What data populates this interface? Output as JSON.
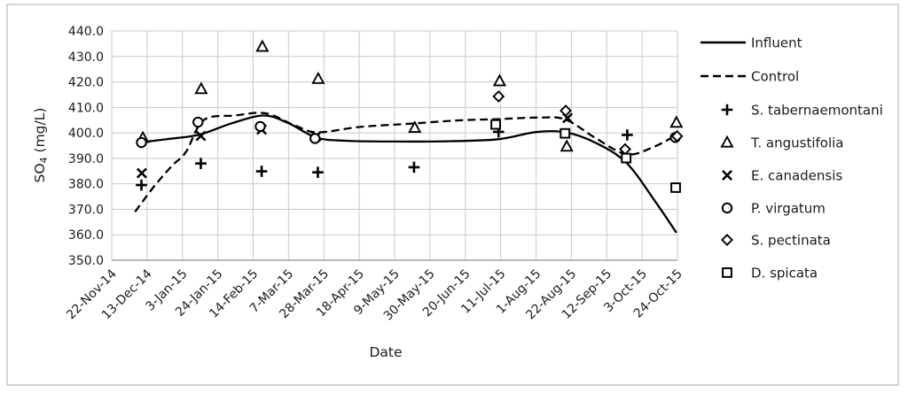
{
  "chart_data": {
    "type": "line+scatter",
    "title": "",
    "xlabel": "Date",
    "ylabel": {
      "base": "SO",
      "sub": "4",
      "unit": " (mg/L)"
    },
    "y_axis": {
      "min": 350,
      "max": 440,
      "step": 10,
      "decimals": 1
    },
    "x_tick_labels": [
      "22-Nov-14",
      "13-Dec-14",
      "3-Jan-15",
      "24-Jan-15",
      "14-Feb-15",
      "7-Mar-15",
      "28-Mar-15",
      "18-Apr-15",
      "9-May-15",
      "30-May-15",
      "20-Jun-15",
      "11-Jul-15",
      "1-Aug-15",
      "22-Aug-15",
      "12-Sep-15",
      "3-Oct-15",
      "24-Oct-15"
    ],
    "grid": true,
    "legend_position": "right",
    "lines": [
      {
        "name": "Influent",
        "style": "solid",
        "points": [
          [
            0.83,
            396.3
          ],
          [
            1.6,
            397.6
          ],
          [
            2.48,
            399.3
          ],
          [
            3.4,
            403.8
          ],
          [
            4.3,
            406.8
          ],
          [
            5.0,
            403.8
          ],
          [
            5.78,
            398.2
          ],
          [
            6.6,
            396.9
          ],
          [
            8.0,
            396.6
          ],
          [
            9.5,
            396.7
          ],
          [
            10.93,
            397.5
          ],
          [
            12.0,
            400.3
          ],
          [
            12.84,
            400.2
          ],
          [
            13.7,
            396.0
          ],
          [
            14.56,
            388.2
          ],
          [
            15.35,
            373.5
          ],
          [
            15.97,
            360.8
          ]
        ]
      },
      {
        "name": "Control",
        "style": "dashed",
        "points": [
          [
            0.66,
            369.0
          ],
          [
            1.2,
            379.0
          ],
          [
            1.7,
            387.0
          ],
          [
            2.1,
            392.5
          ],
          [
            2.6,
            405.0
          ],
          [
            3.5,
            406.8
          ],
          [
            4.35,
            407.7
          ],
          [
            5.2,
            402.8
          ],
          [
            5.82,
            400.2
          ],
          [
            7.0,
            402.3
          ],
          [
            8.55,
            403.7
          ],
          [
            9.8,
            404.9
          ],
          [
            10.93,
            405.4
          ],
          [
            12.1,
            406.0
          ],
          [
            12.84,
            405.2
          ],
          [
            13.7,
            397.8
          ],
          [
            14.56,
            391.6
          ],
          [
            15.3,
            394.3
          ],
          [
            15.97,
            399.2
          ]
        ]
      }
    ],
    "scatter": [
      {
        "name": "S. tabernaemontani",
        "marker": "plus",
        "points": [
          [
            0.84,
            379.5
          ],
          [
            2.52,
            388.0
          ],
          [
            4.24,
            384.9
          ],
          [
            5.83,
            384.5
          ],
          [
            8.55,
            386.5
          ],
          [
            10.94,
            400.4
          ],
          [
            14.58,
            399.2
          ]
        ]
      },
      {
        "name": "T. angustifolia",
        "marker": "triangle",
        "points": [
          [
            0.88,
            398.0
          ],
          [
            2.53,
            417.2
          ],
          [
            4.26,
            433.8
          ],
          [
            5.84,
            421.2
          ],
          [
            8.57,
            402.0
          ],
          [
            10.97,
            420.3
          ],
          [
            12.87,
            394.6
          ],
          [
            15.97,
            404.0
          ]
        ]
      },
      {
        "name": "E. canadensis",
        "marker": "x",
        "points": [
          [
            0.85,
            384.2
          ],
          [
            2.52,
            398.8
          ],
          [
            4.24,
            401.3
          ],
          [
            5.78,
            398.6
          ],
          [
            12.89,
            405.8
          ]
        ]
      },
      {
        "name": "P. virgatum",
        "marker": "circle",
        "points": [
          [
            0.84,
            396.2
          ],
          [
            2.44,
            404.2
          ],
          [
            4.2,
            402.5
          ],
          [
            5.75,
            397.8
          ],
          [
            15.94,
            398.2
          ]
        ]
      },
      {
        "name": "S. pectinata",
        "marker": "diamond",
        "points": [
          [
            10.94,
            414.3
          ],
          [
            12.84,
            408.7
          ],
          [
            14.52,
            393.6
          ],
          [
            15.99,
            398.7
          ]
        ]
      },
      {
        "name": "D. spicata",
        "marker": "square",
        "points": [
          [
            10.86,
            403.3
          ],
          [
            12.82,
            399.8
          ],
          [
            14.55,
            390.1
          ],
          [
            15.95,
            378.5
          ]
        ]
      }
    ],
    "legend": [
      {
        "swatch": "line-solid",
        "label": "Influent"
      },
      {
        "swatch": "line-dashed",
        "label": "Control"
      },
      {
        "swatch": "plus",
        "label": "S. tabernaemontani"
      },
      {
        "swatch": "triangle",
        "label": "T. angustifolia"
      },
      {
        "swatch": "x",
        "label": "E. canadensis"
      },
      {
        "swatch": "circle",
        "label": "P. virgatum"
      },
      {
        "swatch": "diamond",
        "label": "S. pectinata"
      },
      {
        "swatch": "square",
        "label": "D. spicata"
      }
    ],
    "colors": {
      "series": "#000000",
      "text": "#1a1a1a",
      "grid": "#c9c9c9",
      "axis": "#b3b3b3",
      "frame": "#d4d4d4",
      "background": "#ffffff"
    }
  }
}
